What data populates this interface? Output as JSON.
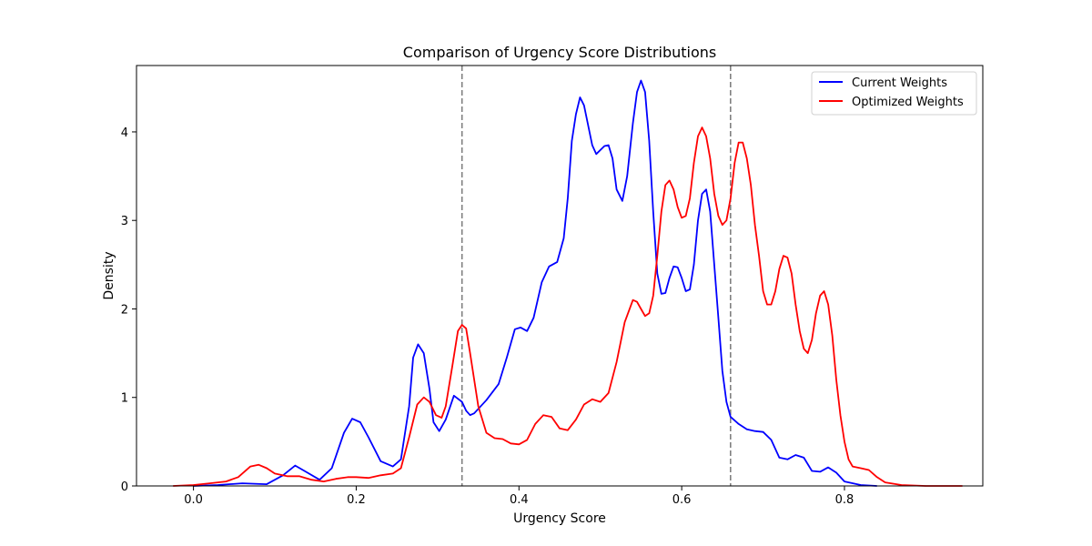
{
  "chart_data": {
    "type": "line",
    "title": "Comparison of Urgency Score Distributions",
    "xlabel": "Urgency Score",
    "ylabel": "Density",
    "xlim": [
      -0.07,
      0.97
    ],
    "ylim": [
      0,
      4.75
    ],
    "xticks": [
      0.0,
      0.2,
      0.4,
      0.6,
      0.8
    ],
    "xtick_labels": [
      "0.0",
      "0.2",
      "0.4",
      "0.6",
      "0.8"
    ],
    "yticks": [
      0,
      1,
      2,
      3,
      4
    ],
    "ytick_labels": [
      "0",
      "1",
      "2",
      "3",
      "4"
    ],
    "grid": false,
    "legend_position": "top-right",
    "vlines": [
      {
        "x": 0.33,
        "color": "#808080",
        "style": "dashed"
      },
      {
        "x": 0.66,
        "color": "#808080",
        "style": "dashed"
      }
    ],
    "series": [
      {
        "name": "Current Weights",
        "color": "#0000ff",
        "points": [
          [
            0.0,
            0.0
          ],
          [
            0.03,
            0.01
          ],
          [
            0.06,
            0.03
          ],
          [
            0.09,
            0.02
          ],
          [
            0.11,
            0.12
          ],
          [
            0.125,
            0.23
          ],
          [
            0.14,
            0.15
          ],
          [
            0.155,
            0.07
          ],
          [
            0.17,
            0.2
          ],
          [
            0.185,
            0.6
          ],
          [
            0.195,
            0.76
          ],
          [
            0.205,
            0.72
          ],
          [
            0.215,
            0.55
          ],
          [
            0.23,
            0.28
          ],
          [
            0.245,
            0.22
          ],
          [
            0.255,
            0.3
          ],
          [
            0.265,
            0.9
          ],
          [
            0.27,
            1.45
          ],
          [
            0.276,
            1.6
          ],
          [
            0.283,
            1.5
          ],
          [
            0.29,
            1.1
          ],
          [
            0.295,
            0.72
          ],
          [
            0.302,
            0.62
          ],
          [
            0.31,
            0.75
          ],
          [
            0.32,
            1.02
          ],
          [
            0.33,
            0.95
          ],
          [
            0.335,
            0.85
          ],
          [
            0.34,
            0.8
          ],
          [
            0.345,
            0.82
          ],
          [
            0.36,
            0.97
          ],
          [
            0.375,
            1.15
          ],
          [
            0.385,
            1.45
          ],
          [
            0.395,
            1.77
          ],
          [
            0.402,
            1.79
          ],
          [
            0.41,
            1.75
          ],
          [
            0.418,
            1.9
          ],
          [
            0.428,
            2.3
          ],
          [
            0.437,
            2.48
          ],
          [
            0.447,
            2.53
          ],
          [
            0.455,
            2.8
          ],
          [
            0.46,
            3.25
          ],
          [
            0.465,
            3.9
          ],
          [
            0.47,
            4.2
          ],
          [
            0.475,
            4.39
          ],
          [
            0.48,
            4.3
          ],
          [
            0.49,
            3.85
          ],
          [
            0.495,
            3.75
          ],
          [
            0.505,
            3.84
          ],
          [
            0.51,
            3.85
          ],
          [
            0.515,
            3.7
          ],
          [
            0.52,
            3.35
          ],
          [
            0.527,
            3.22
          ],
          [
            0.533,
            3.5
          ],
          [
            0.54,
            4.1
          ],
          [
            0.545,
            4.45
          ],
          [
            0.55,
            4.58
          ],
          [
            0.555,
            4.45
          ],
          [
            0.56,
            3.9
          ],
          [
            0.565,
            3.1
          ],
          [
            0.57,
            2.4
          ],
          [
            0.575,
            2.17
          ],
          [
            0.58,
            2.18
          ],
          [
            0.585,
            2.35
          ],
          [
            0.59,
            2.48
          ],
          [
            0.595,
            2.47
          ],
          [
            0.6,
            2.35
          ],
          [
            0.605,
            2.2
          ],
          [
            0.61,
            2.22
          ],
          [
            0.615,
            2.5
          ],
          [
            0.62,
            3.0
          ],
          [
            0.625,
            3.3
          ],
          [
            0.63,
            3.35
          ],
          [
            0.635,
            3.1
          ],
          [
            0.64,
            2.5
          ],
          [
            0.645,
            1.9
          ],
          [
            0.65,
            1.3
          ],
          [
            0.655,
            0.95
          ],
          [
            0.66,
            0.78
          ],
          [
            0.67,
            0.7
          ],
          [
            0.68,
            0.64
          ],
          [
            0.69,
            0.62
          ],
          [
            0.7,
            0.61
          ],
          [
            0.71,
            0.52
          ],
          [
            0.72,
            0.32
          ],
          [
            0.73,
            0.3
          ],
          [
            0.74,
            0.35
          ],
          [
            0.75,
            0.32
          ],
          [
            0.76,
            0.17
          ],
          [
            0.77,
            0.16
          ],
          [
            0.78,
            0.21
          ],
          [
            0.79,
            0.15
          ],
          [
            0.8,
            0.05
          ],
          [
            0.82,
            0.01
          ],
          [
            0.84,
            0.0
          ]
        ]
      },
      {
        "name": "Optimized Weights",
        "color": "#ff0000",
        "points": [
          [
            -0.025,
            0.0
          ],
          [
            0.0,
            0.01
          ],
          [
            0.02,
            0.03
          ],
          [
            0.04,
            0.05
          ],
          [
            0.055,
            0.1
          ],
          [
            0.07,
            0.22
          ],
          [
            0.08,
            0.24
          ],
          [
            0.09,
            0.2
          ],
          [
            0.1,
            0.14
          ],
          [
            0.115,
            0.11
          ],
          [
            0.13,
            0.11
          ],
          [
            0.145,
            0.07
          ],
          [
            0.16,
            0.05
          ],
          [
            0.175,
            0.08
          ],
          [
            0.19,
            0.1
          ],
          [
            0.2,
            0.1
          ],
          [
            0.215,
            0.09
          ],
          [
            0.23,
            0.12
          ],
          [
            0.245,
            0.14
          ],
          [
            0.255,
            0.2
          ],
          [
            0.265,
            0.55
          ],
          [
            0.275,
            0.92
          ],
          [
            0.283,
            1.0
          ],
          [
            0.29,
            0.95
          ],
          [
            0.298,
            0.8
          ],
          [
            0.305,
            0.77
          ],
          [
            0.31,
            0.9
          ],
          [
            0.318,
            1.35
          ],
          [
            0.325,
            1.75
          ],
          [
            0.33,
            1.82
          ],
          [
            0.335,
            1.78
          ],
          [
            0.34,
            1.5
          ],
          [
            0.35,
            0.9
          ],
          [
            0.36,
            0.6
          ],
          [
            0.37,
            0.54
          ],
          [
            0.38,
            0.53
          ],
          [
            0.39,
            0.48
          ],
          [
            0.4,
            0.47
          ],
          [
            0.41,
            0.52
          ],
          [
            0.42,
            0.7
          ],
          [
            0.43,
            0.8
          ],
          [
            0.44,
            0.78
          ],
          [
            0.45,
            0.65
          ],
          [
            0.46,
            0.63
          ],
          [
            0.47,
            0.75
          ],
          [
            0.48,
            0.92
          ],
          [
            0.49,
            0.98
          ],
          [
            0.5,
            0.95
          ],
          [
            0.51,
            1.05
          ],
          [
            0.52,
            1.4
          ],
          [
            0.53,
            1.85
          ],
          [
            0.54,
            2.1
          ],
          [
            0.545,
            2.08
          ],
          [
            0.55,
            2.0
          ],
          [
            0.555,
            1.92
          ],
          [
            0.56,
            1.95
          ],
          [
            0.565,
            2.15
          ],
          [
            0.57,
            2.6
          ],
          [
            0.575,
            3.1
          ],
          [
            0.58,
            3.4
          ],
          [
            0.585,
            3.45
          ],
          [
            0.59,
            3.35
          ],
          [
            0.595,
            3.15
          ],
          [
            0.6,
            3.03
          ],
          [
            0.605,
            3.05
          ],
          [
            0.61,
            3.25
          ],
          [
            0.615,
            3.65
          ],
          [
            0.62,
            3.95
          ],
          [
            0.625,
            4.05
          ],
          [
            0.63,
            3.95
          ],
          [
            0.635,
            3.7
          ],
          [
            0.64,
            3.3
          ],
          [
            0.645,
            3.05
          ],
          [
            0.65,
            2.95
          ],
          [
            0.655,
            3.0
          ],
          [
            0.66,
            3.25
          ],
          [
            0.665,
            3.65
          ],
          [
            0.67,
            3.88
          ],
          [
            0.675,
            3.88
          ],
          [
            0.68,
            3.7
          ],
          [
            0.685,
            3.4
          ],
          [
            0.69,
            2.95
          ],
          [
            0.695,
            2.6
          ],
          [
            0.7,
            2.2
          ],
          [
            0.705,
            2.05
          ],
          [
            0.71,
            2.05
          ],
          [
            0.715,
            2.2
          ],
          [
            0.72,
            2.45
          ],
          [
            0.725,
            2.6
          ],
          [
            0.73,
            2.58
          ],
          [
            0.735,
            2.4
          ],
          [
            0.74,
            2.05
          ],
          [
            0.745,
            1.75
          ],
          [
            0.75,
            1.55
          ],
          [
            0.755,
            1.5
          ],
          [
            0.76,
            1.65
          ],
          [
            0.765,
            1.95
          ],
          [
            0.77,
            2.15
          ],
          [
            0.775,
            2.2
          ],
          [
            0.78,
            2.05
          ],
          [
            0.785,
            1.7
          ],
          [
            0.79,
            1.2
          ],
          [
            0.795,
            0.8
          ],
          [
            0.8,
            0.5
          ],
          [
            0.805,
            0.3
          ],
          [
            0.81,
            0.22
          ],
          [
            0.82,
            0.2
          ],
          [
            0.83,
            0.18
          ],
          [
            0.84,
            0.1
          ],
          [
            0.85,
            0.04
          ],
          [
            0.87,
            0.01
          ],
          [
            0.9,
            0.0
          ],
          [
            0.945,
            0.0
          ]
        ]
      }
    ]
  }
}
